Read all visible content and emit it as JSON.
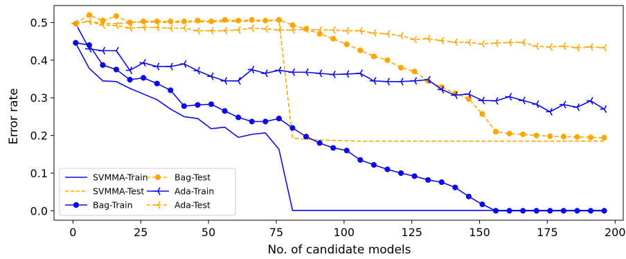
{
  "chart_data": {
    "type": "line",
    "title": "",
    "xlabel": "No. of candidate models",
    "ylabel": "Error rate",
    "xlim": [
      -7,
      203
    ],
    "ylim": [
      -0.025,
      0.545
    ],
    "xticks": [
      0,
      25,
      50,
      75,
      100,
      125,
      150,
      175,
      200
    ],
    "yticks": [
      0.0,
      0.1,
      0.2,
      0.3,
      0.4,
      0.5
    ],
    "xtick_labels": [
      "0",
      "25",
      "50",
      "75",
      "100",
      "125",
      "150",
      "175",
      "200"
    ],
    "ytick_labels": [
      "0.0",
      "0.1",
      "0.2",
      "0.3",
      "0.4",
      "0.5"
    ],
    "grid": false,
    "legend": {
      "placement": "bottom-left",
      "columns": 2
    },
    "colors": {
      "blue": "#0a0ae6",
      "orange": "#ffa500"
    },
    "series": [
      {
        "name": "SVMMA-Train",
        "color": "#0a0ae6",
        "style": "solid",
        "marker": "none",
        "points": [
          [
            1,
            0.445
          ],
          [
            6,
            0.378
          ],
          [
            11,
            0.345
          ],
          [
            16,
            0.343
          ],
          [
            21,
            0.325
          ],
          [
            26,
            0.31
          ],
          [
            31,
            0.295
          ],
          [
            36,
            0.27
          ],
          [
            41,
            0.25
          ],
          [
            46,
            0.245
          ],
          [
            51,
            0.218
          ],
          [
            56,
            0.222
          ],
          [
            61,
            0.195
          ],
          [
            66,
            0.203
          ],
          [
            71,
            0.207
          ],
          [
            76,
            0.163
          ],
          [
            81,
            0.001
          ],
          [
            86,
            0.001
          ],
          [
            91,
            0.001
          ],
          [
            96,
            0.001
          ],
          [
            101,
            0.001
          ],
          [
            106,
            0.001
          ],
          [
            111,
            0.001
          ],
          [
            116,
            0.001
          ],
          [
            121,
            0.001
          ],
          [
            126,
            0.001
          ],
          [
            131,
            0.001
          ],
          [
            136,
            0.001
          ],
          [
            141,
            0.001
          ],
          [
            146,
            0.001
          ],
          [
            151,
            0.001
          ],
          [
            156,
            0.001
          ],
          [
            161,
            0.001
          ],
          [
            166,
            0.001
          ],
          [
            171,
            0.001
          ],
          [
            176,
            0.001
          ],
          [
            181,
            0.001
          ],
          [
            186,
            0.001
          ],
          [
            191,
            0.001
          ],
          [
            196,
            0.001
          ]
        ]
      },
      {
        "name": "SVMMA-Test",
        "color": "#ffa500",
        "style": "dashed",
        "marker": "none",
        "points": [
          [
            1,
            0.497
          ],
          [
            6,
            0.503
          ],
          [
            11,
            0.497
          ],
          [
            16,
            0.497
          ],
          [
            21,
            0.5
          ],
          [
            26,
            0.501
          ],
          [
            31,
            0.501
          ],
          [
            36,
            0.5
          ],
          [
            41,
            0.501
          ],
          [
            46,
            0.502
          ],
          [
            51,
            0.502
          ],
          [
            56,
            0.502
          ],
          [
            61,
            0.503
          ],
          [
            66,
            0.503
          ],
          [
            71,
            0.504
          ],
          [
            76,
            0.505
          ],
          [
            81,
            0.193
          ],
          [
            86,
            0.19
          ],
          [
            91,
            0.188
          ],
          [
            96,
            0.187
          ],
          [
            101,
            0.186
          ],
          [
            106,
            0.185
          ],
          [
            111,
            0.185
          ],
          [
            116,
            0.185
          ],
          [
            121,
            0.185
          ],
          [
            126,
            0.185
          ],
          [
            131,
            0.185
          ],
          [
            136,
            0.185
          ],
          [
            141,
            0.185
          ],
          [
            146,
            0.185
          ],
          [
            151,
            0.185
          ],
          [
            156,
            0.185
          ],
          [
            161,
            0.185
          ],
          [
            166,
            0.185
          ],
          [
            171,
            0.185
          ],
          [
            176,
            0.185
          ],
          [
            181,
            0.185
          ],
          [
            186,
            0.185
          ],
          [
            191,
            0.185
          ],
          [
            196,
            0.185
          ]
        ]
      },
      {
        "name": "Bag-Train",
        "color": "#0a0ae6",
        "style": "solid",
        "marker": "circle",
        "points": [
          [
            1,
            0.446
          ],
          [
            6,
            0.44
          ],
          [
            11,
            0.387
          ],
          [
            16,
            0.375
          ],
          [
            21,
            0.348
          ],
          [
            26,
            0.353
          ],
          [
            31,
            0.338
          ],
          [
            36,
            0.32
          ],
          [
            41,
            0.278
          ],
          [
            46,
            0.281
          ],
          [
            51,
            0.283
          ],
          [
            56,
            0.265
          ],
          [
            61,
            0.248
          ],
          [
            66,
            0.237
          ],
          [
            71,
            0.237
          ],
          [
            76,
            0.245
          ],
          [
            81,
            0.22
          ],
          [
            86,
            0.197
          ],
          [
            91,
            0.18
          ],
          [
            96,
            0.167
          ],
          [
            101,
            0.16
          ],
          [
            106,
            0.135
          ],
          [
            111,
            0.122
          ],
          [
            116,
            0.11
          ],
          [
            121,
            0.1
          ],
          [
            126,
            0.092
          ],
          [
            131,
            0.082
          ],
          [
            136,
            0.076
          ],
          [
            141,
            0.062
          ],
          [
            146,
            0.038
          ],
          [
            151,
            0.017
          ],
          [
            156,
            0.0
          ],
          [
            161,
            0.0
          ],
          [
            166,
            0.0
          ],
          [
            171,
            0.0
          ],
          [
            176,
            0.0
          ],
          [
            181,
            0.0
          ],
          [
            186,
            0.0
          ],
          [
            191,
            0.0
          ],
          [
            196,
            0.0
          ]
        ]
      },
      {
        "name": "Bag-Test",
        "color": "#ffa500",
        "style": "dashed",
        "marker": "circle",
        "points": [
          [
            1,
            0.497
          ],
          [
            6,
            0.52
          ],
          [
            11,
            0.505
          ],
          [
            16,
            0.517
          ],
          [
            21,
            0.5
          ],
          [
            26,
            0.503
          ],
          [
            31,
            0.503
          ],
          [
            36,
            0.503
          ],
          [
            41,
            0.503
          ],
          [
            46,
            0.505
          ],
          [
            51,
            0.503
          ],
          [
            56,
            0.507
          ],
          [
            61,
            0.505
          ],
          [
            66,
            0.507
          ],
          [
            71,
            0.505
          ],
          [
            76,
            0.507
          ],
          [
            81,
            0.493
          ],
          [
            86,
            0.483
          ],
          [
            91,
            0.47
          ],
          [
            96,
            0.457
          ],
          [
            101,
            0.442
          ],
          [
            106,
            0.426
          ],
          [
            111,
            0.41
          ],
          [
            116,
            0.4
          ],
          [
            121,
            0.38
          ],
          [
            126,
            0.37
          ],
          [
            131,
            0.345
          ],
          [
            136,
            0.328
          ],
          [
            141,
            0.312
          ],
          [
            146,
            0.297
          ],
          [
            151,
            0.257
          ],
          [
            156,
            0.21
          ],
          [
            161,
            0.205
          ],
          [
            166,
            0.203
          ],
          [
            171,
            0.2
          ],
          [
            176,
            0.198
          ],
          [
            181,
            0.197
          ],
          [
            186,
            0.196
          ],
          [
            191,
            0.195
          ],
          [
            196,
            0.194
          ]
        ]
      },
      {
        "name": "Ada-Train",
        "color": "#0a0ae6",
        "style": "solid",
        "marker": "tri_left",
        "points": [
          [
            1,
            0.497
          ],
          [
            6,
            0.43
          ],
          [
            11,
            0.425
          ],
          [
            16,
            0.425
          ],
          [
            21,
            0.373
          ],
          [
            26,
            0.393
          ],
          [
            31,
            0.383
          ],
          [
            36,
            0.383
          ],
          [
            41,
            0.39
          ],
          [
            46,
            0.372
          ],
          [
            51,
            0.357
          ],
          [
            56,
            0.345
          ],
          [
            61,
            0.345
          ],
          [
            66,
            0.375
          ],
          [
            71,
            0.365
          ],
          [
            76,
            0.373
          ],
          [
            81,
            0.368
          ],
          [
            86,
            0.368
          ],
          [
            91,
            0.365
          ],
          [
            96,
            0.362
          ],
          [
            101,
            0.363
          ],
          [
            106,
            0.365
          ],
          [
            111,
            0.345
          ],
          [
            116,
            0.343
          ],
          [
            121,
            0.343
          ],
          [
            126,
            0.345
          ],
          [
            131,
            0.348
          ],
          [
            136,
            0.322
          ],
          [
            141,
            0.307
          ],
          [
            146,
            0.31
          ],
          [
            151,
            0.293
          ],
          [
            156,
            0.292
          ],
          [
            161,
            0.303
          ],
          [
            166,
            0.293
          ],
          [
            171,
            0.283
          ],
          [
            176,
            0.263
          ],
          [
            181,
            0.282
          ],
          [
            186,
            0.275
          ],
          [
            191,
            0.292
          ],
          [
            196,
            0.27
          ]
        ]
      },
      {
        "name": "Ada-Test",
        "color": "#ffa500",
        "style": "dashed",
        "marker": "tri_left",
        "points": [
          [
            1,
            0.497
          ],
          [
            6,
            0.503
          ],
          [
            11,
            0.493
          ],
          [
            16,
            0.492
          ],
          [
            21,
            0.485
          ],
          [
            26,
            0.487
          ],
          [
            31,
            0.487
          ],
          [
            36,
            0.485
          ],
          [
            41,
            0.485
          ],
          [
            46,
            0.478
          ],
          [
            51,
            0.478
          ],
          [
            56,
            0.478
          ],
          [
            61,
            0.48
          ],
          [
            66,
            0.485
          ],
          [
            71,
            0.483
          ],
          [
            76,
            0.48
          ],
          [
            81,
            0.48
          ],
          [
            86,
            0.482
          ],
          [
            91,
            0.48
          ],
          [
            96,
            0.48
          ],
          [
            101,
            0.478
          ],
          [
            106,
            0.478
          ],
          [
            111,
            0.472
          ],
          [
            116,
            0.47
          ],
          [
            121,
            0.465
          ],
          [
            126,
            0.455
          ],
          [
            131,
            0.457
          ],
          [
            136,
            0.452
          ],
          [
            141,
            0.448
          ],
          [
            146,
            0.447
          ],
          [
            151,
            0.443
          ],
          [
            156,
            0.445
          ],
          [
            161,
            0.447
          ],
          [
            166,
            0.447
          ],
          [
            171,
            0.437
          ],
          [
            176,
            0.435
          ],
          [
            181,
            0.437
          ],
          [
            186,
            0.433
          ],
          [
            191,
            0.435
          ],
          [
            196,
            0.433
          ]
        ]
      }
    ]
  }
}
